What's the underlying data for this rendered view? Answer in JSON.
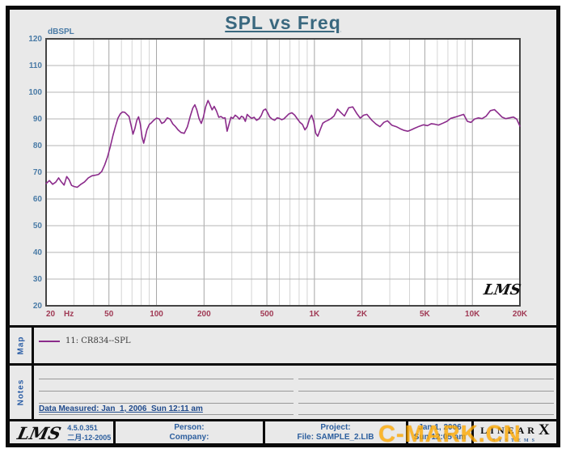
{
  "colors": {
    "background": "#e9e9e9",
    "plot_bg": "#ffffff",
    "grid_minor": "#d4d4d4",
    "grid_major": "#a6a6a6",
    "grid_horizontal": "#b4b4b4",
    "plot_frame": "#444444",
    "title": "#3a687f",
    "y_tick": "#4a7ba6",
    "x_tick": "#a03a55",
    "curve": "#8b2b8b",
    "section_label": "#2b5ea6",
    "footer_text": "#2d5f9e",
    "watermark": "#ffaa00"
  },
  "chart_data": {
    "type": "line",
    "title": "SPL vs Freq",
    "ylabel": "dBSPL",
    "x_unit": "Hz",
    "xlim": [
      20,
      20000
    ],
    "ylim": [
      20,
      120
    ],
    "x_scale": "log",
    "grid": true,
    "x_ticks": [
      {
        "v": 20,
        "label": "20"
      },
      {
        "v": 50,
        "label": "50"
      },
      {
        "v": 100,
        "label": "100"
      },
      {
        "v": 200,
        "label": "200"
      },
      {
        "v": 500,
        "label": "500"
      },
      {
        "v": 1000,
        "label": "1K"
      },
      {
        "v": 2000,
        "label": "2K"
      },
      {
        "v": 5000,
        "label": "5K"
      },
      {
        "v": 10000,
        "label": "10K"
      },
      {
        "v": 20000,
        "label": "20K"
      }
    ],
    "y_ticks": [
      120,
      110,
      100,
      90,
      80,
      70,
      60,
      50,
      40,
      30,
      20
    ],
    "series": [
      {
        "name": "11: CR834--SPL",
        "color": "#8b2b8b",
        "points": [
          [
            20,
            65.8
          ],
          [
            21,
            66.9
          ],
          [
            22,
            65.5
          ],
          [
            23,
            66.3
          ],
          [
            24,
            67.9
          ],
          [
            25,
            66.4
          ],
          [
            26,
            65.2
          ],
          [
            27,
            68.4
          ],
          [
            28,
            67.2
          ],
          [
            29,
            65.1
          ],
          [
            30,
            64.7
          ],
          [
            31.5,
            64.4
          ],
          [
            33,
            65.4
          ],
          [
            35,
            66.4
          ],
          [
            37,
            67.9
          ],
          [
            39,
            68.7
          ],
          [
            41,
            68.9
          ],
          [
            43,
            69.2
          ],
          [
            45,
            70.3
          ],
          [
            47,
            72.8
          ],
          [
            49,
            75.8
          ],
          [
            51,
            79.6
          ],
          [
            53,
            83.8
          ],
          [
            55,
            87.2
          ],
          [
            57,
            90.2
          ],
          [
            59,
            91.9
          ],
          [
            61,
            92.6
          ],
          [
            63,
            92.5
          ],
          [
            65,
            91.7
          ],
          [
            67,
            90.9
          ],
          [
            69,
            87.6
          ],
          [
            71,
            84.3
          ],
          [
            73,
            86.4
          ],
          [
            75,
            89.4
          ],
          [
            77,
            90.8
          ],
          [
            79,
            88.1
          ],
          [
            81,
            83.2
          ],
          [
            83,
            80.9
          ],
          [
            85,
            83.4
          ],
          [
            87,
            85.9
          ],
          [
            90,
            87.9
          ],
          [
            93,
            88.6
          ],
          [
            96,
            89.5
          ],
          [
            100,
            90.3
          ],
          [
            104,
            90.0
          ],
          [
            108,
            88.3
          ],
          [
            112,
            88.8
          ],
          [
            117,
            90.4
          ],
          [
            122,
            89.9
          ],
          [
            127,
            88.1
          ],
          [
            132,
            87.1
          ],
          [
            137,
            85.9
          ],
          [
            143,
            84.9
          ],
          [
            150,
            84.6
          ],
          [
            157,
            87.1
          ],
          [
            164,
            91.2
          ],
          [
            170,
            94.1
          ],
          [
            175,
            95.3
          ],
          [
            180,
            93.4
          ],
          [
            186,
            90.1
          ],
          [
            192,
            88.3
          ],
          [
            198,
            90.6
          ],
          [
            205,
            94.6
          ],
          [
            212,
            96.9
          ],
          [
            218,
            95.4
          ],
          [
            225,
            93.4
          ],
          [
            232,
            94.7
          ],
          [
            240,
            92.9
          ],
          [
            248,
            90.6
          ],
          [
            256,
            90.9
          ],
          [
            264,
            90.3
          ],
          [
            272,
            90.4
          ],
          [
            280,
            85.4
          ],
          [
            288,
            88.1
          ],
          [
            296,
            90.6
          ],
          [
            305,
            90.2
          ],
          [
            315,
            91.4
          ],
          [
            325,
            90.8
          ],
          [
            335,
            89.9
          ],
          [
            345,
            91.0
          ],
          [
            355,
            90.6
          ],
          [
            365,
            89.1
          ],
          [
            375,
            91.7
          ],
          [
            385,
            91.0
          ],
          [
            400,
            90.2
          ],
          [
            415,
            90.6
          ],
          [
            430,
            89.5
          ],
          [
            445,
            90.0
          ],
          [
            460,
            91.2
          ],
          [
            475,
            93.2
          ],
          [
            490,
            93.7
          ],
          [
            505,
            92.4
          ],
          [
            520,
            90.8
          ],
          [
            540,
            89.9
          ],
          [
            560,
            89.5
          ],
          [
            580,
            90.4
          ],
          [
            600,
            90.2
          ],
          [
            620,
            89.7
          ],
          [
            640,
            90.0
          ],
          [
            660,
            90.8
          ],
          [
            690,
            91.9
          ],
          [
            720,
            92.3
          ],
          [
            750,
            91.4
          ],
          [
            780,
            90.0
          ],
          [
            810,
            88.7
          ],
          [
            840,
            87.9
          ],
          [
            870,
            85.9
          ],
          [
            900,
            87.1
          ],
          [
            930,
            89.9
          ],
          [
            960,
            91.4
          ],
          [
            990,
            89.0
          ],
          [
            1020,
            84.6
          ],
          [
            1050,
            83.5
          ],
          [
            1090,
            86.1
          ],
          [
            1130,
            88.4
          ],
          [
            1170,
            89.0
          ],
          [
            1220,
            89.5
          ],
          [
            1270,
            90.1
          ],
          [
            1330,
            91.1
          ],
          [
            1400,
            93.7
          ],
          [
            1470,
            92.4
          ],
          [
            1550,
            91.1
          ],
          [
            1650,
            94.2
          ],
          [
            1750,
            94.5
          ],
          [
            1850,
            92.1
          ],
          [
            1950,
            90.3
          ],
          [
            2050,
            91.4
          ],
          [
            2150,
            91.7
          ],
          [
            2300,
            89.6
          ],
          [
            2450,
            88.1
          ],
          [
            2600,
            87.1
          ],
          [
            2750,
            88.7
          ],
          [
            2900,
            89.3
          ],
          [
            3100,
            87.6
          ],
          [
            3300,
            87.1
          ],
          [
            3500,
            86.3
          ],
          [
            3700,
            85.7
          ],
          [
            3900,
            85.4
          ],
          [
            4100,
            85.9
          ],
          [
            4300,
            86.5
          ],
          [
            4600,
            87.2
          ],
          [
            4900,
            87.8
          ],
          [
            5200,
            87.5
          ],
          [
            5500,
            88.2
          ],
          [
            5800,
            88.0
          ],
          [
            6100,
            87.7
          ],
          [
            6500,
            88.4
          ],
          [
            6900,
            89.1
          ],
          [
            7300,
            90.2
          ],
          [
            7800,
            90.7
          ],
          [
            8300,
            91.2
          ],
          [
            8800,
            91.7
          ],
          [
            9300,
            89.1
          ],
          [
            9800,
            88.7
          ],
          [
            10300,
            89.9
          ],
          [
            10900,
            90.4
          ],
          [
            11500,
            90.1
          ],
          [
            12200,
            91.0
          ],
          [
            13000,
            93.1
          ],
          [
            13800,
            93.5
          ],
          [
            14600,
            92.1
          ],
          [
            15400,
            90.7
          ],
          [
            16300,
            90.1
          ],
          [
            17200,
            90.4
          ],
          [
            18200,
            90.7
          ],
          [
            19100,
            89.9
          ],
          [
            20000,
            87.3
          ]
        ]
      }
    ],
    "legend_position": "map-panel-below"
  },
  "plot_logo": "LMS",
  "map": {
    "label": "Map",
    "legend": [
      {
        "text": "11: CR834--SPL",
        "color": "#8b2b8b"
      }
    ]
  },
  "notes": {
    "label": "Notes",
    "data_measured": "Data Measured: Jan  1, 2006  Sun 12:11 am"
  },
  "footer": {
    "logo": "LMS",
    "version": "4.5.0.351",
    "version_date": "二月-12-2005",
    "person_label": "Person:",
    "company_label": "Company:",
    "project_label": "Project:",
    "file_label": "File: SAMPLE_2.LIB",
    "date": "Jan  1, 2006",
    "time": "Sun 12:05 am",
    "brand_line1": "LINEAR",
    "brand_x": "X",
    "brand_line2": "SYSTEMS"
  },
  "watermark": {
    "text": "C-MARK.CN"
  }
}
